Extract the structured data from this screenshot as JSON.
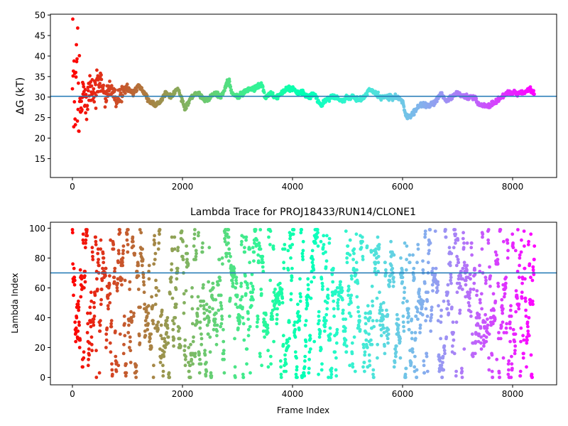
{
  "chart_data": [
    {
      "type": "scatter",
      "title": "",
      "xlabel": "",
      "ylabel": "ΔG (kT)",
      "xlim": [
        -400,
        8800
      ],
      "ylim": [
        10.4,
        50.2
      ],
      "xticks": [
        0,
        2000,
        4000,
        6000,
        8000
      ],
      "yticks": [
        15,
        20,
        25,
        30,
        35,
        40,
        45,
        50
      ],
      "xtick_labels": [
        "0",
        "2000",
        "4000",
        "6000",
        "8000"
      ],
      "ytick_labels": [
        "15",
        "20",
        "25",
        "30",
        "35",
        "40",
        "45",
        "50"
      ],
      "hline": 30.2,
      "hline_color": "#1f77b4",
      "colormap": "rainbow",
      "color_mapping": "frame index (red at 0 → violet at end)",
      "n_frames": 8400,
      "grid": false,
      "trace": [
        [
          0,
          40
        ],
        [
          20,
          46
        ],
        [
          40,
          25
        ],
        [
          60,
          38
        ],
        [
          80,
          20
        ],
        [
          100,
          32
        ],
        [
          140,
          28
        ],
        [
          200,
          31
        ],
        [
          260,
          27
        ],
        [
          320,
          33
        ],
        [
          400,
          30
        ],
        [
          500,
          34
        ],
        [
          600,
          30
        ],
        [
          700,
          33
        ],
        [
          800,
          28
        ],
        [
          900,
          31
        ],
        [
          1000,
          32
        ],
        [
          1100,
          31
        ],
        [
          1200,
          33
        ],
        [
          1300,
          31
        ],
        [
          1400,
          29
        ],
        [
          1500,
          28
        ],
        [
          1600,
          29
        ],
        [
          1700,
          31
        ],
        [
          1800,
          30
        ],
        [
          1900,
          32
        ],
        [
          1950,
          31
        ],
        [
          2000,
          29
        ],
        [
          2050,
          27
        ],
        [
          2150,
          30
        ],
        [
          2300,
          31
        ],
        [
          2400,
          29
        ],
        [
          2500,
          30
        ],
        [
          2600,
          31
        ],
        [
          2700,
          30
        ],
        [
          2800,
          33
        ],
        [
          2850,
          34
        ],
        [
          2900,
          31
        ],
        [
          3000,
          30
        ],
        [
          3100,
          31
        ],
        [
          3200,
          32
        ],
        [
          3300,
          32
        ],
        [
          3400,
          33
        ],
        [
          3450,
          33
        ],
        [
          3500,
          30
        ],
        [
          3600,
          31
        ],
        [
          3700,
          30
        ],
        [
          3800,
          31
        ],
        [
          3900,
          32
        ],
        [
          4000,
          32
        ],
        [
          4100,
          31
        ],
        [
          4200,
          31
        ],
        [
          4300,
          30
        ],
        [
          4400,
          31
        ],
        [
          4500,
          28
        ],
        [
          4600,
          29
        ],
        [
          4700,
          30
        ],
        [
          4800,
          30
        ],
        [
          4900,
          29
        ],
        [
          5000,
          30
        ],
        [
          5100,
          30
        ],
        [
          5200,
          29
        ],
        [
          5300,
          30
        ],
        [
          5400,
          32
        ],
        [
          5500,
          31
        ],
        [
          5600,
          30
        ],
        [
          5700,
          30
        ],
        [
          5800,
          30
        ],
        [
          5900,
          30
        ],
        [
          6000,
          29
        ],
        [
          6050,
          26
        ],
        [
          6100,
          25
        ],
        [
          6200,
          26
        ],
        [
          6300,
          28
        ],
        [
          6400,
          28
        ],
        [
          6500,
          28
        ],
        [
          6600,
          29
        ],
        [
          6700,
          31
        ],
        [
          6800,
          29
        ],
        [
          6900,
          30
        ],
        [
          7000,
          31
        ],
        [
          7100,
          30
        ],
        [
          7200,
          30
        ],
        [
          7300,
          30
        ],
        [
          7400,
          28
        ],
        [
          7500,
          28
        ],
        [
          7600,
          28
        ],
        [
          7700,
          29
        ],
        [
          7800,
          30
        ],
        [
          7900,
          31
        ],
        [
          8000,
          31
        ],
        [
          8100,
          31
        ],
        [
          8200,
          31
        ],
        [
          8300,
          32
        ],
        [
          8380,
          31
        ]
      ]
    },
    {
      "type": "scatter",
      "title": "Lambda Trace for PROJ18433/RUN14/CLONE1",
      "xlabel": "Frame Index",
      "ylabel": "Lambda Index",
      "xlim": [
        -400,
        8800
      ],
      "ylim": [
        -5,
        104
      ],
      "xticks": [
        0,
        2000,
        4000,
        6000,
        8000
      ],
      "yticks": [
        0,
        20,
        40,
        60,
        80,
        100
      ],
      "xtick_labels": [
        "0",
        "2000",
        "4000",
        "6000",
        "8000"
      ],
      "ytick_labels": [
        "0",
        "20",
        "40",
        "60",
        "80",
        "100"
      ],
      "hline": 70,
      "hline_color": "#1f77b4",
      "colormap": "rainbow",
      "color_mapping": "frame index (red at 0 → violet at end)",
      "n_frames": 8400,
      "y_range": [
        0,
        99
      ],
      "grid": false
    }
  ]
}
